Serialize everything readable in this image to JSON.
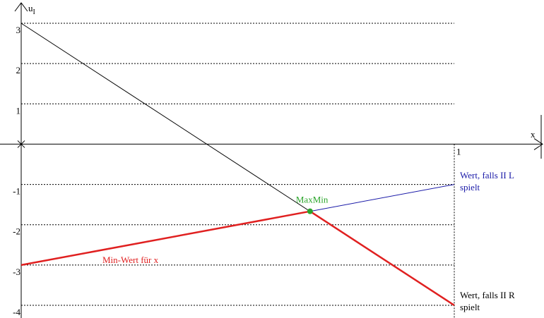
{
  "chart_data": {
    "type": "line",
    "ylabel": "u",
    "ylabel_sub": "I",
    "xlabel": "x",
    "xlim": [
      0,
      1
    ],
    "ylim": [
      -4,
      3
    ],
    "x_ticks": [
      {
        "value": 1,
        "label": "1"
      }
    ],
    "y_ticks": [
      {
        "value": 3,
        "label": "3"
      },
      {
        "value": 2,
        "label": "2"
      },
      {
        "value": 1,
        "label": "1"
      },
      {
        "value": -1,
        "label": "-1"
      },
      {
        "value": -2,
        "label": "-2"
      },
      {
        "value": -3,
        "label": "-3"
      },
      {
        "value": -4,
        "label": "-4"
      }
    ],
    "grid": "horizontal dashed",
    "series": [
      {
        "key": "wert-ll",
        "x": [
          0,
          1
        ],
        "y": [
          3,
          -4
        ],
        "color": "#000000",
        "thin": true
      },
      {
        "key": "wert-l",
        "x": [
          0.667,
          1
        ],
        "y": [
          -1.667,
          -1
        ],
        "color": "#1a1aa8"
      },
      {
        "key": "min-wert",
        "x": [
          0,
          0.667
        ],
        "y": [
          -3,
          -1.667
        ],
        "color": "#e02020"
      },
      {
        "key": "wert-r",
        "x": [
          0.667,
          1
        ],
        "y": [
          -1.667,
          -4
        ],
        "color": "#e02020"
      }
    ],
    "point": {
      "label": "MaxMin",
      "x": 0.667,
      "y": -1.667,
      "color": "#2aa52a"
    },
    "annotations": [
      {
        "key": "wert-l",
        "lines": [
          "Wert, falls II L",
          "spielt"
        ],
        "color": "#1a1aa8"
      },
      {
        "key": "wert-r",
        "lines": [
          "Wert, falls II R",
          "spielt"
        ],
        "color": "#000000"
      },
      {
        "key": "min-wert",
        "lines": [
          "Min-Wert für x"
        ],
        "color": "#e02020"
      }
    ]
  }
}
